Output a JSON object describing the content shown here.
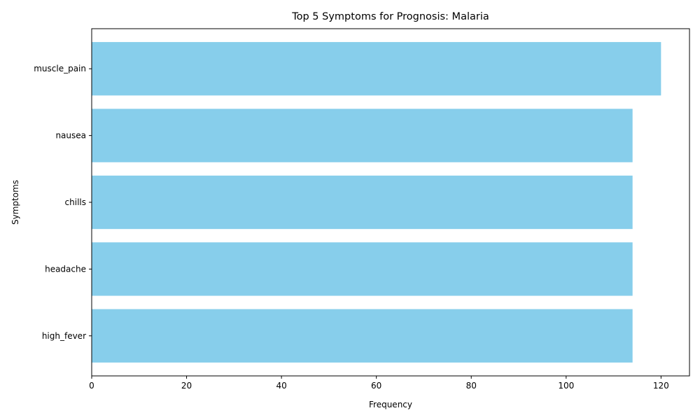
{
  "chart_data": {
    "type": "bar",
    "orientation": "horizontal",
    "title": "Top 5 Symptoms for Prognosis: Malaria",
    "xlabel": "Frequency",
    "ylabel": "Symptoms",
    "categories": [
      "muscle_pain",
      "nausea",
      "chills",
      "headache",
      "high_fever"
    ],
    "values": [
      120,
      114,
      114,
      114,
      114
    ],
    "xlim": [
      0,
      126
    ],
    "xticks": [
      0,
      20,
      40,
      60,
      80,
      100,
      120
    ],
    "grid": false,
    "bar_color": "#87ceeb"
  }
}
